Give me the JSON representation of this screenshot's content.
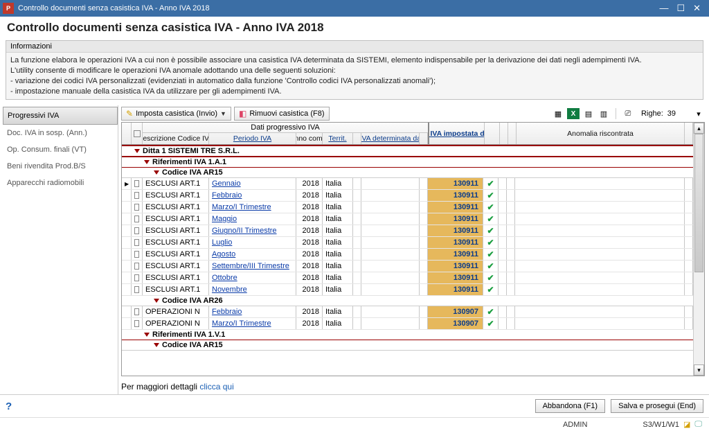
{
  "window": {
    "title": "Controllo documenti senza casistica IVA - Anno IVA 2018"
  },
  "header": {
    "title": "Controllo documenti senza casistica IVA - Anno IVA 2018"
  },
  "info": {
    "title": "Informazioni",
    "p1": "La funzione elabora le operazioni IVA a cui non è possibile associare una casistica IVA determinata da SISTEMI, elemento indispensabile per la derivazione dei dati negli adempimenti IVA.",
    "p2": "L'utility consente di modificare le operazioni IVA anomale adottando una delle seguenti soluzioni:",
    "p3": "- variazione dei codici IVA personalizzati (evidenziati in automatico dalla funzione 'Controllo codici IVA personalizzati anomali');",
    "p4": "- impostazione manuale della casistica IVA da utilizzare per gli adempimenti IVA."
  },
  "sidebar": {
    "items": [
      "Progressivi IVA",
      "Doc. IVA in sosp. (Ann.)",
      "Op. Consum. finali (VT)",
      "Beni rivendita Prod.B/S",
      "Apparecchi radiomobili"
    ],
    "active": 0
  },
  "toolbar": {
    "imposta": "Imposta casistica (Invio)",
    "rimuovi": "Rimuovi casistica (F8)",
    "righe_label": "Righe:",
    "righe_n": "39"
  },
  "grid": {
    "group_header": "Dati progressivo IVA",
    "cols": {
      "desc": "Descrizione Codice IVA",
      "periodo": "Periodo IVA",
      "anno": "Anno comp.",
      "territ": "Territ.",
      "cas_sistemi": "Casistica IVA determinata da SISTEMI",
      "cas_utente": "Casistica IVA impostata dall'Utente",
      "anomalia": "Anomalia riscontrata"
    },
    "groups": [
      {
        "level": 0,
        "label": "Ditta 1 SISTEMI TRE S.R.L.",
        "children": [
          {
            "level": 1,
            "label": "Riferimenti IVA 1.A.1",
            "children": [
              {
                "level": 2,
                "label": "Codice IVA AR15",
                "rows": [
                  {
                    "marker": true,
                    "desc": "ESCLUSI ART.1",
                    "periodo": "Gennaio",
                    "anno": "2018",
                    "terr": "Italia",
                    "imp": "130911",
                    "ok": true
                  },
                  {
                    "desc": "ESCLUSI ART.1",
                    "periodo": "Febbraio",
                    "anno": "2018",
                    "terr": "Italia",
                    "imp": "130911",
                    "ok": true
                  },
                  {
                    "desc": "ESCLUSI ART.1",
                    "periodo": "Marzo/I Trimestre",
                    "anno": "2018",
                    "terr": "Italia",
                    "imp": "130911",
                    "ok": true
                  },
                  {
                    "desc": "ESCLUSI ART.1",
                    "periodo": "Maggio",
                    "anno": "2018",
                    "terr": "Italia",
                    "imp": "130911",
                    "ok": true
                  },
                  {
                    "desc": "ESCLUSI ART.1",
                    "periodo": "Giugno/II Trimestre",
                    "anno": "2018",
                    "terr": "Italia",
                    "imp": "130911",
                    "ok": true
                  },
                  {
                    "desc": "ESCLUSI ART.1",
                    "periodo": "Luglio",
                    "anno": "2018",
                    "terr": "Italia",
                    "imp": "130911",
                    "ok": true
                  },
                  {
                    "desc": "ESCLUSI ART.1",
                    "periodo": "Agosto",
                    "anno": "2018",
                    "terr": "Italia",
                    "imp": "130911",
                    "ok": true
                  },
                  {
                    "desc": "ESCLUSI ART.1",
                    "periodo": "Settembre/III Trimestre",
                    "anno": "2018",
                    "terr": "Italia",
                    "imp": "130911",
                    "ok": true
                  },
                  {
                    "desc": "ESCLUSI ART.1",
                    "periodo": "Ottobre",
                    "anno": "2018",
                    "terr": "Italia",
                    "imp": "130911",
                    "ok": true
                  },
                  {
                    "desc": "ESCLUSI ART.1",
                    "periodo": "Novembre",
                    "anno": "2018",
                    "terr": "Italia",
                    "imp": "130911",
                    "ok": true
                  }
                ]
              },
              {
                "level": 2,
                "label": "Codice IVA AR26",
                "rows": [
                  {
                    "desc": "OPERAZIONI N",
                    "periodo": "Febbraio",
                    "anno": "2018",
                    "terr": "Italia",
                    "imp": "130907",
                    "ok": true
                  },
                  {
                    "desc": "OPERAZIONI N",
                    "periodo": "Marzo/I Trimestre",
                    "anno": "2018",
                    "terr": "Italia",
                    "imp": "130907",
                    "ok": true
                  }
                ]
              }
            ]
          },
          {
            "level": 1,
            "label": "Riferimenti IVA 1.V.1",
            "children": [
              {
                "level": 2,
                "label": "Codice IVA AR15",
                "rows": []
              }
            ]
          }
        ]
      }
    ]
  },
  "footer": {
    "text": "Per maggiori dettagli ",
    "link": "clicca qui"
  },
  "buttons": {
    "abbandona": "Abbandona (F1)",
    "salva": "Salva e prosegui (End)"
  },
  "status": {
    "user": "ADMIN",
    "session": "S3/W1/W1"
  },
  "colors": {
    "highlight": "#e6b85c",
    "group_border": "#900",
    "link": "#0a3ba8"
  }
}
